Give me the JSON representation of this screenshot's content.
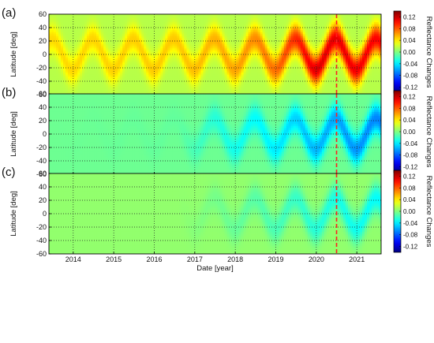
{
  "figure": {
    "panels": [
      "(a)",
      "(b)",
      "(c)"
    ]
  },
  "chart_data": [
    {
      "type": "heatmap",
      "panel_label": "(a)",
      "xlabel": "Date [year]",
      "ylabel": "Latitude [deg]",
      "xlim": [
        2013.4,
        2021.6
      ],
      "ylim": [
        -60,
        60
      ],
      "x_ticks": [
        2014,
        2015,
        2016,
        2017,
        2018,
        2019,
        2020,
        2021
      ],
      "y_ticks": [
        60,
        40,
        20,
        0,
        -20,
        -40,
        -60
      ],
      "grid": true,
      "colorbar": {
        "label": "Reflectance Changes",
        "min": -0.14,
        "max": 0.14,
        "ticks": [
          "0.12",
          "0.08",
          "0.04",
          "0.00",
          "-0.04",
          "-0.08",
          "-0.12"
        ],
        "tick_values": [
          0.12,
          0.08,
          0.04,
          0.0,
          -0.04,
          -0.08,
          -0.12
        ]
      },
      "marker_line": {
        "x": 2020.5,
        "color": "#ff2020",
        "style": "dashed"
      },
      "base_value": 0.015,
      "amplitude_by_year": [
        [
          2013.4,
          0.03
        ],
        [
          2016.6,
          0.035
        ],
        [
          2018.0,
          0.045
        ],
        [
          2019.0,
          0.06
        ],
        [
          2020.0,
          0.1
        ],
        [
          2021.6,
          0.09
        ]
      ]
    },
    {
      "type": "heatmap",
      "panel_label": "(b)",
      "xlabel": "Date [year]",
      "ylabel": "Latitude [deg]",
      "xlim": [
        2013.4,
        2021.6
      ],
      "ylim": [
        -60,
        60
      ],
      "x_ticks": [
        2014,
        2015,
        2016,
        2017,
        2018,
        2019,
        2020,
        2021
      ],
      "y_ticks": [
        60,
        40,
        20,
        0,
        -20,
        -40,
        -60
      ],
      "grid": true,
      "colorbar": {
        "label": "Reflectance Changes",
        "min": -0.14,
        "max": 0.14,
        "ticks": [
          "0.12",
          "0.08",
          "0.04",
          "0.00",
          "-0.04",
          "-0.08",
          "-0.12"
        ],
        "tick_values": [
          0.12,
          0.08,
          0.04,
          0.0,
          -0.04,
          -0.08,
          -0.12
        ]
      },
      "marker_line": {
        "x": 2020.5,
        "color": "#ff2020",
        "style": "dashed"
      },
      "base_value": -0.005,
      "amplitude_by_year": [
        [
          2013.4,
          0.0
        ],
        [
          2016.6,
          -0.003
        ],
        [
          2017.5,
          -0.02
        ],
        [
          2019.0,
          -0.035
        ],
        [
          2020.0,
          -0.05
        ],
        [
          2021.6,
          -0.065
        ]
      ]
    },
    {
      "type": "heatmap",
      "panel_label": "(c)",
      "xlabel": "Date [year]",
      "ylabel": "Latitude [deg]",
      "xlim": [
        2013.4,
        2021.6
      ],
      "ylim": [
        -60,
        60
      ],
      "x_ticks": [
        2014,
        2015,
        2016,
        2017,
        2018,
        2019,
        2020,
        2021
      ],
      "y_ticks": [
        60,
        40,
        20,
        0,
        -20,
        -40,
        -60
      ],
      "grid": true,
      "colorbar": {
        "label": "Reflectance Changes",
        "min": -0.14,
        "max": 0.14,
        "ticks": [
          "0.12",
          "0.08",
          "0.04",
          "0.00",
          "-0.04",
          "-0.08",
          "-0.12"
        ],
        "tick_values": [
          0.12,
          0.08,
          0.04,
          0.0,
          -0.04,
          -0.08,
          -0.12
        ]
      },
      "marker_line": {
        "x": 2020.5,
        "color": "#ff2020",
        "style": "dashed"
      },
      "base_value": 0.005,
      "amplitude_by_year": [
        [
          2013.4,
          0.0
        ],
        [
          2016.6,
          0.0
        ],
        [
          2017.5,
          -0.008
        ],
        [
          2019.0,
          -0.02
        ],
        [
          2020.0,
          -0.03
        ],
        [
          2021.6,
          -0.04
        ]
      ]
    }
  ]
}
